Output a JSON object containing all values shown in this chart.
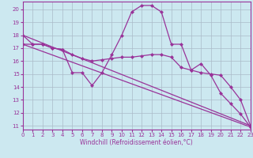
{
  "xlabel": "Windchill (Refroidissement éolien,°C)",
  "bg_color": "#cce8f0",
  "line_color": "#993399",
  "grid_color": "#aabbc8",
  "series": [
    {
      "x": [
        0,
        1,
        2,
        3,
        4,
        5,
        6,
        7,
        8,
        9,
        10,
        11,
        12,
        13,
        14,
        15,
        16,
        17,
        18,
        19,
        20,
        21,
        22,
        23
      ],
      "y": [
        18.0,
        17.3,
        17.3,
        17.0,
        16.9,
        15.1,
        15.1,
        14.1,
        15.1,
        16.5,
        18.0,
        19.8,
        20.3,
        20.3,
        19.8,
        17.3,
        17.3,
        15.3,
        15.8,
        14.9,
        13.5,
        12.7,
        11.9,
        10.9
      ],
      "markers": true
    },
    {
      "x": [
        0,
        1,
        2,
        3,
        4,
        5,
        6,
        7,
        8,
        9,
        10,
        11,
        12,
        13,
        14,
        15,
        16,
        17,
        18,
        19,
        20,
        21,
        22,
        23
      ],
      "y": [
        17.3,
        17.3,
        17.3,
        17.0,
        16.9,
        16.5,
        16.2,
        16.0,
        16.1,
        16.2,
        16.3,
        16.3,
        16.4,
        16.5,
        16.5,
        16.3,
        15.5,
        15.3,
        15.1,
        15.0,
        14.9,
        14.0,
        13.0,
        11.0
      ],
      "markers": true
    },
    {
      "x": [
        0,
        23
      ],
      "y": [
        18.0,
        11.0
      ],
      "markers": false
    },
    {
      "x": [
        0,
        23
      ],
      "y": [
        17.3,
        10.9
      ],
      "markers": false
    }
  ],
  "xlim": [
    0,
    23
  ],
  "ylim": [
    10.7,
    20.6
  ],
  "yticks": [
    11,
    12,
    13,
    14,
    15,
    16,
    17,
    18,
    19,
    20
  ],
  "xticks": [
    0,
    1,
    2,
    3,
    4,
    5,
    6,
    7,
    8,
    9,
    10,
    11,
    12,
    13,
    14,
    15,
    16,
    17,
    18,
    19,
    20,
    21,
    22,
    23
  ],
  "tick_fontsize": 5.0,
  "xlabel_fontsize": 5.5,
  "marker_size": 2.5,
  "line_width": 0.9
}
